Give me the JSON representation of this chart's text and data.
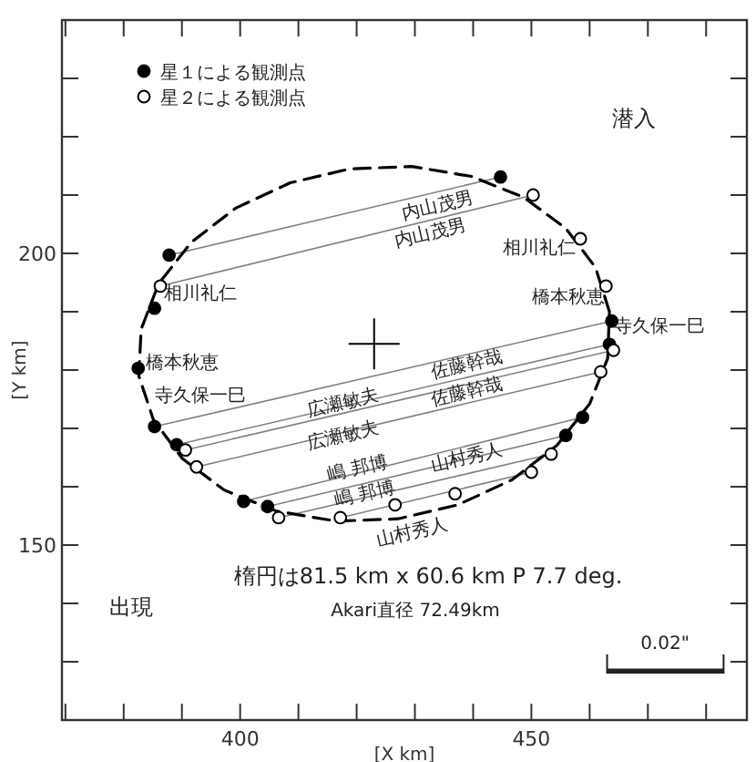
{
  "chart_data": {
    "type": "scatter",
    "xlabel": "[X km]",
    "ylabel": "[Y km]",
    "xlim": [
      369.4,
      487
    ],
    "ylim": [
      120,
      240
    ],
    "xticks": [
      {
        "value": 370,
        "label": null
      },
      {
        "value": 380,
        "label": null
      },
      {
        "value": 390,
        "label": null
      },
      400,
      {
        "value": 410,
        "label": null
      },
      {
        "value": 420,
        "label": null
      },
      {
        "value": 430,
        "label": null
      },
      {
        "value": 440,
        "label": null
      },
      450,
      {
        "value": 460,
        "label": null
      },
      {
        "value": 470,
        "label": null
      },
      {
        "value": 480,
        "label": null
      }
    ],
    "yticks": [
      {
        "value": 130,
        "label": null
      },
      {
        "value": 140,
        "label": null
      },
      150,
      {
        "value": 160,
        "label": null
      },
      {
        "value": 170,
        "label": null
      },
      {
        "value": 180,
        "label": null
      },
      {
        "value": 190,
        "label": null
      },
      200,
      {
        "value": 210,
        "label": null
      },
      {
        "value": 220,
        "label": null
      },
      {
        "value": 230,
        "label": null
      }
    ],
    "grid": false,
    "legend": "top left",
    "series": [
      {
        "type": "line",
        "color": "#808080",
        "x": [
          387.8,
          444.7
        ],
        "values": [
          199.7,
          213.1
        ]
      },
      {
        "type": "line",
        "color": "#808080",
        "x": [
          386.3,
          450.3
        ],
        "values": [
          194.4,
          210.0
        ]
      },
      {
        "type": "line",
        "color": "#808080",
        "x": [
          385.3,
          463.8
        ],
        "values": [
          170.3,
          188.4
        ]
      },
      {
        "type": "line",
        "color": "#808080",
        "x": [
          389.1,
          463.4
        ],
        "values": [
          167.2,
          184.4
        ]
      },
      {
        "type": "line",
        "color": "#808080",
        "x": [
          390.6,
          464.1
        ],
        "values": [
          166.3,
          183.4
        ]
      },
      {
        "type": "line",
        "color": "#808080",
        "x": [
          392.5,
          461.9
        ],
        "values": [
          163.4,
          179.7
        ]
      },
      {
        "type": "line",
        "color": "#808080",
        "x": [
          400.6,
          458.8
        ],
        "values": [
          157.5,
          171.9
        ]
      },
      {
        "type": "line",
        "color": "#808080",
        "x": [
          404.7,
          455.9
        ],
        "values": [
          156.6,
          168.8
        ]
      },
      {
        "type": "line",
        "color": "#808080",
        "x": [
          406.6,
          453.4
        ],
        "values": [
          154.7,
          165.6
        ]
      },
      {
        "type": "line",
        "color": "#808080",
        "x": [
          417.2,
          450.0
        ],
        "values": [
          154.7,
          162.5
        ]
      },
      {
        "type": "line",
        "color": "#000000",
        "line_style": "dashed",
        "x": [
          463.4,
          461.0,
          455.9,
          448.7,
          439.7,
          429.5,
          418.9,
          408.6,
          399.3,
          391.6,
          386.0,
          383.0,
          382.6,
          385.1,
          390.1,
          397.3,
          406.3,
          416.5,
          427.1,
          437.4,
          446.7,
          454.4,
          460.0,
          463.1,
          463.4,
          461.0
        ],
        "values": [
          190.0,
          197.6,
          204.3,
          209.6,
          213.2,
          214.9,
          214.5,
          212.1,
          207.8,
          201.9,
          194.8,
          187.0,
          179.0,
          171.5,
          164.8,
          159.4,
          155.8,
          154.1,
          154.5,
          156.9,
          161.2,
          167.1,
          174.2,
          182.0,
          190.0,
          197.6
        ]
      },
      {
        "type": "scatter",
        "marker": "cross",
        "color": "#000000",
        "x": [
          423.0
        ],
        "values": [
          184.5
        ]
      },
      {
        "marker": "circle",
        "name": "星１による観測点",
        "color": "#000000",
        "x": [
          444.7,
          387.8,
          385.3,
          382.5,
          385.3,
          389.1,
          400.6,
          404.7,
          463.8,
          463.4,
          458.8,
          455.9
        ],
        "values": [
          213.1,
          199.7,
          190.6,
          180.3,
          170.3,
          167.2,
          157.5,
          156.6,
          188.4,
          184.4,
          171.9,
          168.8
        ]
      },
      {
        "marker": "circle",
        "name": "星２による観測点",
        "color": "#ffffff",
        "x": [
          450.3,
          386.3,
          458.4,
          462.8,
          464.1,
          461.9,
          390.6,
          392.5,
          406.6,
          417.2,
          426.6,
          436.9,
          450.0,
          453.4
        ],
        "values": [
          210.0,
          194.4,
          202.5,
          194.4,
          183.4,
          179.7,
          166.3,
          163.4,
          154.7,
          154.7,
          156.9,
          158.8,
          162.5,
          165.6
        ]
      }
    ],
    "annotations": [
      "内山茂男",
      "内山茂男",
      "相川礼仁",
      "相川礼仁",
      "橋本秋恵",
      "橋本秋恵",
      "寺久保一巳",
      "寺久保一巳",
      "広瀬敏夫",
      "広瀬敏夫",
      "佐藤幹哉",
      "佐藤幹哉",
      "嶋 邦博",
      "嶋 邦博",
      "山村秀人",
      "山村秀人",
      "潜入",
      "出現",
      "楕円は81.5 km x 60.6 km  P 7.7 deg.",
      "Akari直径 72.49km",
      "0.02\""
    ]
  }
}
